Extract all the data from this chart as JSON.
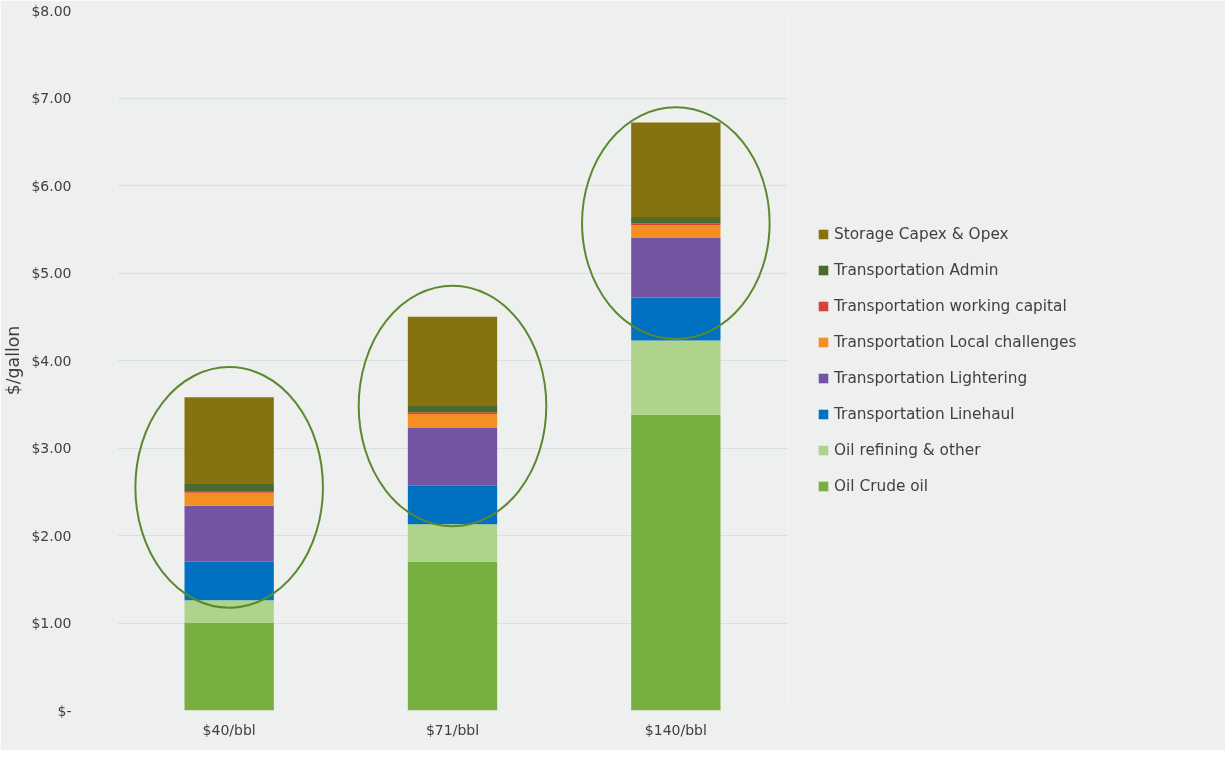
{
  "chart_data": {
    "type": "bar",
    "stacked": true,
    "ylabel": "$/gallon",
    "categories": [
      "$40/bbl",
      "$71/bbl",
      "$140/bbl"
    ],
    "series": [
      {
        "name": "Oil Crude oil",
        "color": "#77b041",
        "values": [
          1.0,
          1.7,
          3.38
        ]
      },
      {
        "name": "Oil refining & other",
        "color": "#aed48b",
        "values": [
          0.26,
          0.43,
          0.85
        ]
      },
      {
        "name": "Transportation Linehaul",
        "color": "#0070c0",
        "values": [
          0.44,
          0.44,
          0.49
        ]
      },
      {
        "name": "Transportation Lightering",
        "color": "#7455a3",
        "values": [
          0.64,
          0.66,
          0.68
        ]
      },
      {
        "name": "Transportation Local challenges",
        "color": "#f39021",
        "values": [
          0.15,
          0.16,
          0.15
        ]
      },
      {
        "name": "Transportation working capital",
        "color": "#d9413a",
        "values": [
          0.02,
          0.02,
          0.02
        ]
      },
      {
        "name": "Transportation Admin",
        "color": "#4a6b2d",
        "values": [
          0.08,
          0.07,
          0.07
        ]
      },
      {
        "name": "Storage Capex & Opex",
        "color": "#86720f",
        "values": [
          0.99,
          1.02,
          1.08
        ]
      }
    ],
    "ylim": [
      0,
      8
    ],
    "yticks": [
      {
        "value": 0,
        "label": "$-"
      },
      {
        "value": 1,
        "label": "$1.00"
      },
      {
        "value": 2,
        "label": "$2.00"
      },
      {
        "value": 3,
        "label": "$3.00"
      },
      {
        "value": 4,
        "label": "$4.00"
      },
      {
        "value": 5,
        "label": "$5.00"
      },
      {
        "value": 6,
        "label": "$6.00"
      },
      {
        "value": 7,
        "label": "$7.00"
      },
      {
        "value": 8,
        "label": "$8.00"
      }
    ],
    "grid": "y",
    "legend": "right"
  }
}
